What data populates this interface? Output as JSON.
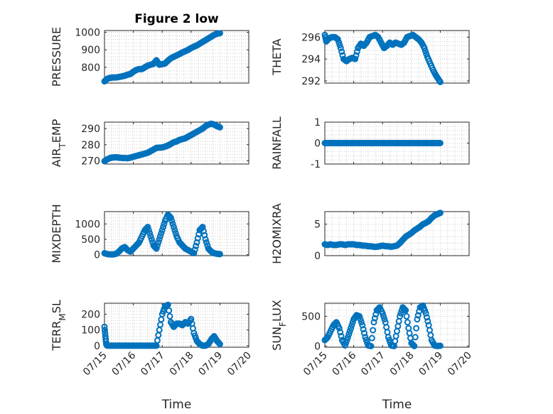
{
  "chart_data": [
    {
      "type": "scatter",
      "title": "Figure 2 low",
      "ylabel": "PRESSURE",
      "xlabel": "",
      "xlim": [
        0,
        5
      ],
      "ylim": [
        710,
        1010
      ],
      "yticks": [
        800,
        900,
        1000
      ],
      "ytick_labels": [
        "800",
        "900",
        "1000"
      ],
      "xticks": [
        0,
        1,
        2,
        3,
        4,
        5
      ],
      "xtick_labels": [],
      "grid": true,
      "marker": "circle-open",
      "color": "#0072bd",
      "series": [
        {
          "x": [
            0.0,
            0.1,
            0.2,
            0.3,
            0.4,
            0.5,
            0.6,
            0.7,
            0.8,
            0.9,
            1.0,
            1.1,
            1.2,
            1.3,
            1.4,
            1.5,
            1.6,
            1.7,
            1.8,
            1.9,
            2.0,
            2.1,
            2.2,
            2.3,
            2.4,
            2.5,
            2.6,
            2.7,
            2.8,
            2.9,
            3.0,
            3.1,
            3.2,
            3.3,
            3.4,
            3.5,
            3.6,
            3.7,
            3.8,
            3.9,
            4.0
          ],
          "y": [
            720,
            735,
            740,
            742,
            742,
            745,
            748,
            752,
            758,
            762,
            775,
            785,
            790,
            790,
            800,
            810,
            815,
            820,
            840,
            815,
            818,
            822,
            838,
            852,
            860,
            868,
            876,
            885,
            892,
            900,
            910,
            918,
            925,
            935,
            945,
            955,
            965,
            975,
            985,
            992,
            995
          ]
        }
      ]
    },
    {
      "type": "scatter",
      "title": "",
      "ylabel": "THETA",
      "xlabel": "",
      "xlim": [
        0,
        5
      ],
      "ylim": [
        291.8,
        296.6
      ],
      "yticks": [
        292,
        294,
        296
      ],
      "ytick_labels": [
        "292",
        "294",
        "296"
      ],
      "xticks": [
        0,
        1,
        2,
        3,
        4,
        5
      ],
      "xtick_labels": [],
      "grid": true,
      "marker": "circle-open",
      "color": "#0072bd",
      "series": [
        {
          "x": [
            0.0,
            0.05,
            0.15,
            0.25,
            0.35,
            0.45,
            0.55,
            0.65,
            0.75,
            0.85,
            0.95,
            1.05,
            1.15,
            1.25,
            1.35,
            1.45,
            1.55,
            1.65,
            1.75,
            1.85,
            1.95,
            2.05,
            2.15,
            2.25,
            2.35,
            2.45,
            2.55,
            2.65,
            2.75,
            2.85,
            2.95,
            3.05,
            3.15,
            3.25,
            3.35,
            3.45,
            3.55,
            3.65,
            3.75,
            3.85,
            3.95,
            4.0
          ],
          "y": [
            296.2,
            295.6,
            295.9,
            296.0,
            296.0,
            295.8,
            295.0,
            294.0,
            293.8,
            294.0,
            294.1,
            294.0,
            295.0,
            295.4,
            295.2,
            295.5,
            296.0,
            296.1,
            296.2,
            296.0,
            295.5,
            295.0,
            295.2,
            295.5,
            295.3,
            295.5,
            295.4,
            295.3,
            295.5,
            296.0,
            296.1,
            296.2,
            296.0,
            295.8,
            295.5,
            295.0,
            294.2,
            293.6,
            293.0,
            292.5,
            292.1,
            291.9
          ]
        }
      ]
    },
    {
      "type": "scatter",
      "title": "",
      "ylabel": "AIR_TEMP",
      "xlabel": "",
      "xlim": [
        0,
        5
      ],
      "ylim": [
        268,
        294
      ],
      "yticks": [
        270,
        280,
        290
      ],
      "ytick_labels": [
        "270",
        "280",
        "290"
      ],
      "xticks": [
        0,
        1,
        2,
        3,
        4,
        5
      ],
      "xtick_labels": [],
      "grid": true,
      "marker": "circle-open",
      "color": "#0072bd",
      "series": [
        {
          "x": [
            0.0,
            0.1,
            0.2,
            0.3,
            0.4,
            0.5,
            0.6,
            0.7,
            0.8,
            0.9,
            1.0,
            1.1,
            1.2,
            1.3,
            1.4,
            1.5,
            1.6,
            1.7,
            1.8,
            1.9,
            2.0,
            2.1,
            2.2,
            2.3,
            2.4,
            2.5,
            2.6,
            2.7,
            2.8,
            2.9,
            3.0,
            3.1,
            3.2,
            3.3,
            3.4,
            3.5,
            3.6,
            3.7,
            3.8,
            3.9,
            4.0
          ],
          "y": [
            269.8,
            271.0,
            271.8,
            272.1,
            272.2,
            272.0,
            271.8,
            271.7,
            271.6,
            272.0,
            272.5,
            273.0,
            273.5,
            274.0,
            274.5,
            275.0,
            276.0,
            277.0,
            278.0,
            278.2,
            278.3,
            278.8,
            279.5,
            280.5,
            281.5,
            282.0,
            283.0,
            283.5,
            284.0,
            285.0,
            286.0,
            287.0,
            288.0,
            289.0,
            290.0,
            291.5,
            292.5,
            293.0,
            292.5,
            291.5,
            290.8
          ]
        }
      ]
    },
    {
      "type": "scatter",
      "title": "",
      "ylabel": "RAINFALL",
      "xlabel": "",
      "xlim": [
        0,
        5
      ],
      "ylim": [
        -1,
        1
      ],
      "yticks": [
        -1,
        0,
        1
      ],
      "ytick_labels": [
        "-1",
        "0",
        "1"
      ],
      "xticks": [
        0,
        1,
        2,
        3,
        4,
        5
      ],
      "xtick_labels": [],
      "grid": true,
      "marker": "circle-open",
      "color": "#0072bd",
      "series": [
        {
          "x": [
            0.0,
            0.1,
            0.2,
            0.3,
            0.4,
            0.5,
            0.6,
            0.7,
            0.8,
            0.9,
            1.0,
            1.1,
            1.2,
            1.3,
            1.4,
            1.5,
            1.6,
            1.7,
            1.8,
            1.9,
            2.0,
            2.1,
            2.2,
            2.3,
            2.4,
            2.5,
            2.6,
            2.7,
            2.8,
            2.9,
            3.0,
            3.1,
            3.2,
            3.3,
            3.4,
            3.5,
            3.6,
            3.7,
            3.8,
            3.9,
            4.0
          ],
          "y": [
            0,
            0,
            0,
            0,
            0,
            0,
            0,
            0,
            0,
            0,
            0,
            0,
            0,
            0,
            0,
            0,
            0,
            0,
            0,
            0,
            0,
            0,
            0,
            0,
            0,
            0,
            0,
            0,
            0,
            0,
            0,
            0,
            0,
            0,
            0,
            0,
            0,
            0,
            0,
            0,
            0
          ]
        }
      ]
    },
    {
      "type": "scatter",
      "title": "",
      "ylabel": "MIXDEPTH",
      "xlabel": "",
      "xlim": [
        0,
        5
      ],
      "ylim": [
        -30,
        1400
      ],
      "yticks": [
        0,
        500,
        1000
      ],
      "ytick_labels": [
        "0",
        "500",
        "1000"
      ],
      "xticks": [
        0,
        1,
        2,
        3,
        4,
        5
      ],
      "xtick_labels": [],
      "grid": true,
      "marker": "circle-open",
      "color": "#0072bd",
      "series": [
        {
          "x": [
            0.0,
            0.1,
            0.2,
            0.3,
            0.4,
            0.5,
            0.6,
            0.7,
            0.8,
            0.9,
            1.0,
            1.1,
            1.2,
            1.3,
            1.4,
            1.5,
            1.6,
            1.7,
            1.8,
            1.9,
            2.0,
            2.1,
            2.2,
            2.3,
            2.4,
            2.5,
            2.6,
            2.7,
            2.8,
            2.9,
            3.0,
            3.1,
            3.2,
            3.3,
            3.4,
            3.5,
            3.6,
            3.7,
            3.8,
            3.9,
            4.0
          ],
          "y": [
            50,
            20,
            10,
            10,
            30,
            100,
            200,
            250,
            150,
            100,
            200,
            300,
            400,
            600,
            800,
            900,
            600,
            300,
            200,
            500,
            800,
            1100,
            1300,
            1200,
            900,
            600,
            400,
            300,
            200,
            150,
            100,
            50,
            400,
            800,
            900,
            500,
            200,
            100,
            50,
            30,
            20
          ]
        }
      ]
    },
    {
      "type": "scatter",
      "title": "",
      "ylabel": "H2OMIXRA",
      "xlabel": "",
      "xlim": [
        0,
        5
      ],
      "ylim": [
        0,
        7
      ],
      "yticks": [
        0,
        5
      ],
      "ytick_labels": [
        "0",
        "5"
      ],
      "xticks": [
        0,
        1,
        2,
        3,
        4,
        5
      ],
      "xtick_labels": [],
      "grid": true,
      "marker": "circle-open",
      "color": "#0072bd",
      "series": [
        {
          "x": [
            0.0,
            0.1,
            0.2,
            0.3,
            0.4,
            0.5,
            0.6,
            0.7,
            0.8,
            0.9,
            1.0,
            1.1,
            1.2,
            1.3,
            1.4,
            1.5,
            1.6,
            1.7,
            1.8,
            1.9,
            2.0,
            2.1,
            2.2,
            2.3,
            2.4,
            2.5,
            2.6,
            2.7,
            2.8,
            2.9,
            3.0,
            3.1,
            3.2,
            3.3,
            3.4,
            3.5,
            3.6,
            3.7,
            3.8,
            3.9,
            4.0
          ],
          "y": [
            1.8,
            1.7,
            1.8,
            1.7,
            1.7,
            1.8,
            1.8,
            1.7,
            1.8,
            1.8,
            1.8,
            1.7,
            1.7,
            1.6,
            1.6,
            1.5,
            1.5,
            1.4,
            1.4,
            1.5,
            1.6,
            1.5,
            1.5,
            1.4,
            1.5,
            1.6,
            2.0,
            2.5,
            3.0,
            3.3,
            3.6,
            4.0,
            4.3,
            4.6,
            5.0,
            5.2,
            5.5,
            6.0,
            6.4,
            6.6,
            6.8
          ]
        }
      ]
    },
    {
      "type": "scatter",
      "title": "",
      "ylabel": "TERR_MSL",
      "xlabel": "Time",
      "xlim": [
        0,
        5
      ],
      "ylim": [
        -10,
        270
      ],
      "yticks": [
        0,
        100,
        200
      ],
      "ytick_labels": [
        "0",
        "100",
        "200"
      ],
      "xticks": [
        0,
        1,
        2,
        3,
        4,
        5
      ],
      "xtick_labels": [
        "07/15",
        "07/16",
        "07/17",
        "07/18",
        "07/19",
        "07/20"
      ],
      "grid": true,
      "marker": "circle-open",
      "color": "#0072bd",
      "series": [
        {
          "x": [
            0.0,
            0.03,
            0.06,
            0.1,
            0.2,
            0.3,
            0.4,
            0.5,
            0.6,
            0.7,
            0.8,
            0.9,
            1.0,
            1.1,
            1.2,
            1.3,
            1.4,
            1.5,
            1.6,
            1.7,
            1.8,
            1.9,
            2.0,
            2.1,
            2.2,
            2.3,
            2.4,
            2.5,
            2.6,
            2.7,
            2.8,
            2.9,
            3.0,
            3.1,
            3.2,
            3.3,
            3.4,
            3.5,
            3.6,
            3.7,
            3.8,
            3.9,
            4.0
          ],
          "y": [
            120,
            60,
            10,
            0,
            0,
            0,
            0,
            0,
            0,
            0,
            0,
            0,
            0,
            0,
            0,
            0,
            0,
            0,
            0,
            0,
            0,
            100,
            200,
            250,
            260,
            150,
            120,
            140,
            140,
            130,
            150,
            140,
            170,
            80,
            30,
            10,
            0,
            0,
            10,
            40,
            60,
            30,
            10
          ]
        }
      ]
    },
    {
      "type": "scatter",
      "title": "",
      "ylabel": "SUN_FLUX",
      "xlabel": "Time",
      "xlim": [
        0,
        5
      ],
      "ylim": [
        -20,
        720
      ],
      "yticks": [
        0,
        500
      ],
      "ytick_labels": [
        "0",
        "500"
      ],
      "xticks": [
        0,
        1,
        2,
        3,
        4,
        5
      ],
      "xtick_labels": [
        "07/15",
        "07/16",
        "07/17",
        "07/18",
        "07/19",
        "07/20"
      ],
      "grid": true,
      "marker": "circle-open",
      "color": "#0072bd",
      "series": [
        {
          "x": [
            0.0,
            0.1,
            0.2,
            0.3,
            0.4,
            0.5,
            0.6,
            0.7,
            0.8,
            0.9,
            1.0,
            1.1,
            1.2,
            1.3,
            1.4,
            1.5,
            1.6,
            1.7,
            1.8,
            1.9,
            2.0,
            2.1,
            2.2,
            2.3,
            2.4,
            2.5,
            2.6,
            2.7,
            2.8,
            2.9,
            3.0,
            3.1,
            3.2,
            3.3,
            3.4,
            3.5,
            3.6,
            3.7,
            3.8,
            3.9,
            4.0
          ],
          "y": [
            100,
            150,
            250,
            350,
            400,
            300,
            100,
            10,
            150,
            300,
            450,
            520,
            500,
            350,
            150,
            10,
            0,
            400,
            600,
            650,
            550,
            400,
            150,
            10,
            0,
            250,
            500,
            650,
            600,
            300,
            50,
            0,
            450,
            650,
            680,
            550,
            350,
            100,
            10,
            0,
            5
          ]
        }
      ]
    }
  ]
}
